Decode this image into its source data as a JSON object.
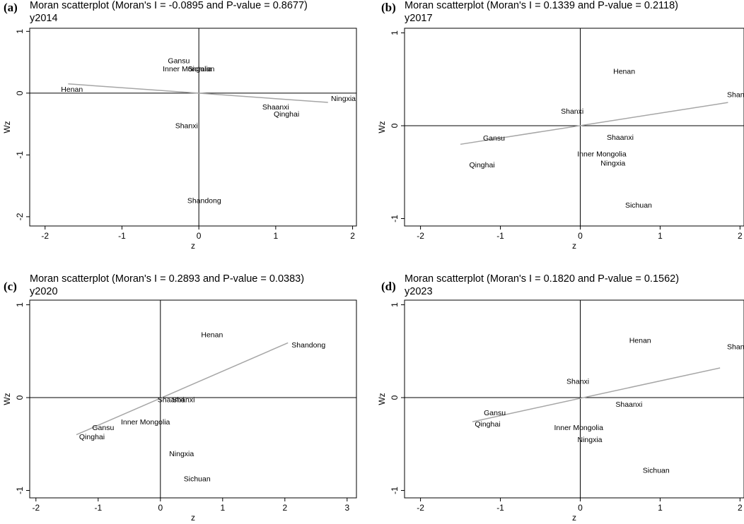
{
  "chart_data": [
    {
      "type": "scatter",
      "panel_label": "(a)",
      "title": "Moran scatterplot (Moran's I = -0.0895 and P-value = 0.8677)",
      "subtitle": "y2014",
      "xlabel": "z",
      "ylabel": "Wz",
      "xlim": [
        -2.2,
        2.05
      ],
      "ylim": [
        -2.15,
        1.05
      ],
      "xticks": [
        -2,
        -1,
        0,
        1,
        2
      ],
      "yticks": [
        -2,
        -1,
        0,
        1
      ],
      "grid": false,
      "reference_lines": {
        "x": 0,
        "y": 0
      },
      "fit_line": {
        "x": [
          -1.7,
          1.68
        ],
        "y": [
          0.15,
          -0.15
        ]
      },
      "points": [
        {
          "label": "Henan",
          "x": -1.65,
          "y": 0.07
        },
        {
          "label": "Gansu",
          "x": -0.26,
          "y": 0.53
        },
        {
          "label": "Inner Mongolia",
          "x": -0.15,
          "y": 0.4
        },
        {
          "label": "Sichuan",
          "x": 0.03,
          "y": 0.4
        },
        {
          "label": "Ningxia",
          "x": 1.88,
          "y": -0.08
        },
        {
          "label": "Shaanxi",
          "x": 1.0,
          "y": -0.22
        },
        {
          "label": "Qinghai",
          "x": 1.14,
          "y": -0.33
        },
        {
          "label": "Shanxi",
          "x": -0.16,
          "y": -0.52
        },
        {
          "label": "Shandong",
          "x": 0.07,
          "y": -1.73
        }
      ]
    },
    {
      "type": "scatter",
      "panel_label": "(b)",
      "title": "Moran scatterplot (Moran's I = 0.1339 and P-value = 0.2118)",
      "subtitle": "y2017",
      "xlabel": "z",
      "ylabel": "Wz",
      "xlim": [
        -2.2,
        2.05
      ],
      "ylim": [
        -1.08,
        1.05
      ],
      "xticks": [
        -2,
        -1,
        0,
        1,
        2
      ],
      "yticks": [
        -1,
        0,
        1
      ],
      "grid": false,
      "reference_lines": {
        "x": 0,
        "y": 0
      },
      "fit_line": {
        "x": [
          -1.5,
          1.85
        ],
        "y": [
          -0.2,
          0.25
        ]
      },
      "points": [
        {
          "label": "Henan",
          "x": 0.55,
          "y": 0.59
        },
        {
          "label": "Shandong",
          "x": 2.05,
          "y": 0.34
        },
        {
          "label": "Shanxi",
          "x": -0.1,
          "y": 0.16
        },
        {
          "label": "Gansu",
          "x": -1.08,
          "y": -0.13
        },
        {
          "label": "Shaanxi",
          "x": 0.5,
          "y": -0.12
        },
        {
          "label": "Inner Mongolia",
          "x": 0.27,
          "y": -0.3
        },
        {
          "label": "Ningxia",
          "x": 0.41,
          "y": -0.4
        },
        {
          "label": "Qinghai",
          "x": -1.23,
          "y": -0.42
        },
        {
          "label": "Sichuan",
          "x": 0.73,
          "y": -0.85
        }
      ]
    },
    {
      "type": "scatter",
      "panel_label": "(c)",
      "title": "Moran scatterplot (Moran's I = 0.2893 and P-value = 0.0383)",
      "subtitle": "y2020",
      "xlabel": "z",
      "ylabel": "Wz",
      "xlim": [
        -2.1,
        3.15
      ],
      "ylim": [
        -1.08,
        1.05
      ],
      "xticks": [
        -2,
        -1,
        0,
        1,
        2,
        3
      ],
      "yticks": [
        -1,
        0,
        1
      ],
      "grid": false,
      "reference_lines": {
        "x": 0,
        "y": 0
      },
      "fit_line": {
        "x": [
          -1.35,
          2.05
        ],
        "y": [
          -0.4,
          0.59
        ]
      },
      "points": [
        {
          "label": "Henan",
          "x": 0.83,
          "y": 0.68
        },
        {
          "label": "Shandong",
          "x": 2.38,
          "y": 0.57
        },
        {
          "label": "Shaanxi",
          "x": 0.17,
          "y": -0.02
        },
        {
          "label": "Shanxi",
          "x": 0.37,
          "y": -0.02
        },
        {
          "label": "Inner Mongolia",
          "x": -0.24,
          "y": -0.26
        },
        {
          "label": "Gansu",
          "x": -0.92,
          "y": -0.32
        },
        {
          "label": "Qinghai",
          "x": -1.1,
          "y": -0.42
        },
        {
          "label": "Ningxia",
          "x": 0.34,
          "y": -0.6
        },
        {
          "label": "Sichuan",
          "x": 0.59,
          "y": -0.87
        }
      ]
    },
    {
      "type": "scatter",
      "panel_label": "(d)",
      "title": "Moran scatterplot (Moran's I = 0.1820 and P-value = 0.1562)",
      "subtitle": "y2023",
      "xlabel": "z",
      "ylabel": "Wz",
      "xlim": [
        -2.2,
        2.05
      ],
      "ylim": [
        -1.08,
        1.05
      ],
      "xticks": [
        -2,
        -1,
        0,
        1,
        2
      ],
      "yticks": [
        -1,
        0,
        1
      ],
      "grid": false,
      "reference_lines": {
        "x": 0,
        "y": 0
      },
      "fit_line": {
        "x": [
          -1.35,
          1.75
        ],
        "y": [
          -0.26,
          0.32
        ]
      },
      "points": [
        {
          "label": "Henan",
          "x": 0.75,
          "y": 0.62
        },
        {
          "label": "Shandong",
          "x": 2.05,
          "y": 0.55
        },
        {
          "label": "Shanxi",
          "x": -0.03,
          "y": 0.18
        },
        {
          "label": "Shaanxi",
          "x": 0.61,
          "y": -0.07
        },
        {
          "label": "Gansu",
          "x": -1.07,
          "y": -0.16
        },
        {
          "label": "Qinghai",
          "x": -1.16,
          "y": -0.28
        },
        {
          "label": "Inner Mongolia",
          "x": -0.02,
          "y": -0.32
        },
        {
          "label": "Ningxia",
          "x": 0.12,
          "y": -0.45
        },
        {
          "label": "Sichuan",
          "x": 0.95,
          "y": -0.78
        }
      ]
    }
  ]
}
